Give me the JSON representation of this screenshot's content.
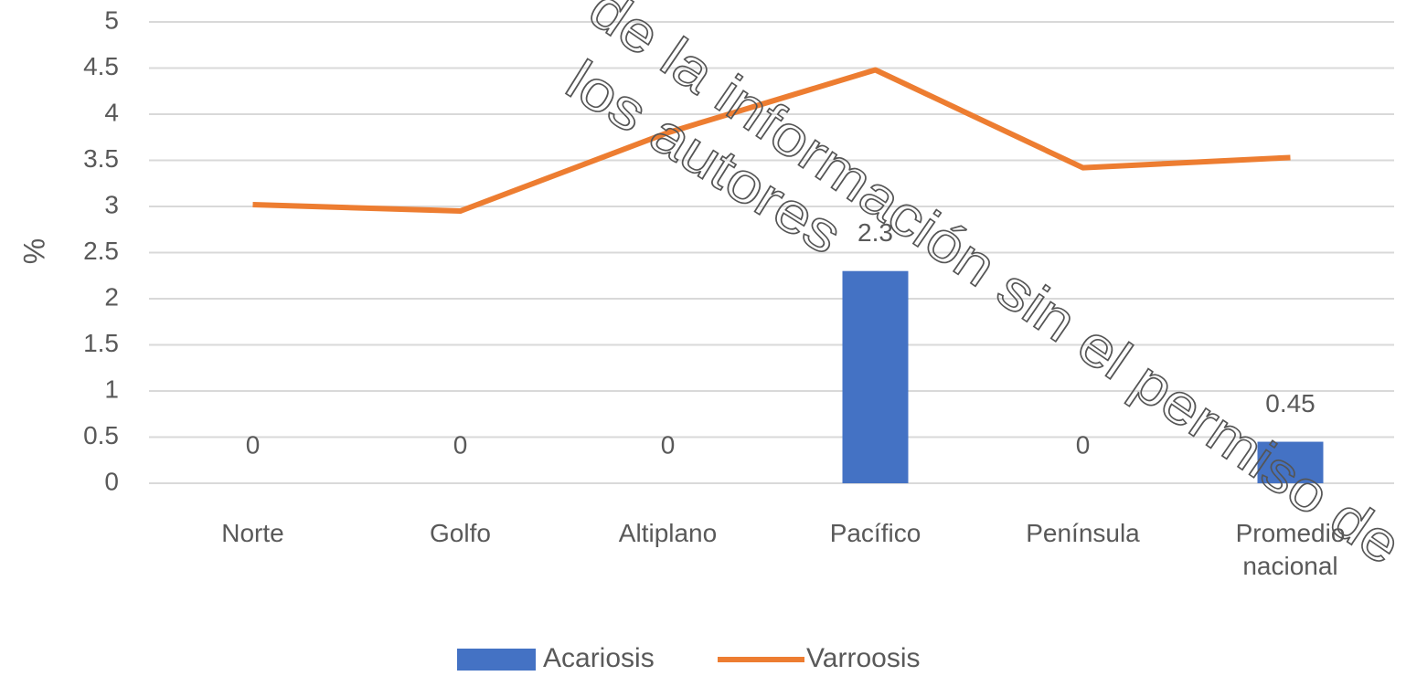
{
  "chart_data": {
    "type": "bar_line",
    "ylabel": "%",
    "categories": [
      "Norte",
      "Golfo",
      "Altiplano",
      "Pacífico",
      "Península",
      "Promedio nacional"
    ],
    "series": [
      {
        "name": "Acariosis",
        "type": "bar",
        "color": "#4472c4",
        "values": [
          0,
          0,
          0,
          2.3,
          0,
          0.45
        ],
        "value_labels": [
          "0",
          "0",
          "0",
          "2.3",
          "0",
          "0.45"
        ]
      },
      {
        "name": "Varroosis",
        "type": "line",
        "color": "#ed7d31",
        "values": [
          3.02,
          2.95,
          3.8,
          4.48,
          3.42,
          3.53
        ]
      }
    ],
    "ylim": [
      0,
      5
    ],
    "yticks": [
      0,
      0.5,
      1,
      1.5,
      2,
      2.5,
      3,
      3.5,
      4,
      4.5,
      5
    ],
    "grid": true,
    "legend": "bottom",
    "annotations": [
      "de la información sin el permiso de",
      "los autores"
    ]
  }
}
